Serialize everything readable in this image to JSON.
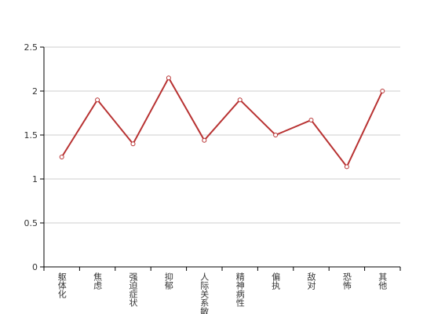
{
  "chart_data": {
    "type": "line",
    "categories": [
      "躯体化",
      "焦虑",
      "强迫症状",
      "抑郁",
      "人际关系敏感",
      "精神病性",
      "偏执",
      "敌对",
      "恐怖",
      "其他"
    ],
    "values": [
      1.25,
      1.9,
      1.4,
      2.15,
      1.44,
      1.9,
      1.5,
      1.67,
      1.14,
      2.0
    ],
    "color": "#b83232",
    "ylim": [
      0,
      2.5
    ],
    "yticks": [
      0,
      0.5,
      1,
      1.5,
      2,
      2.5
    ],
    "grid": true
  }
}
